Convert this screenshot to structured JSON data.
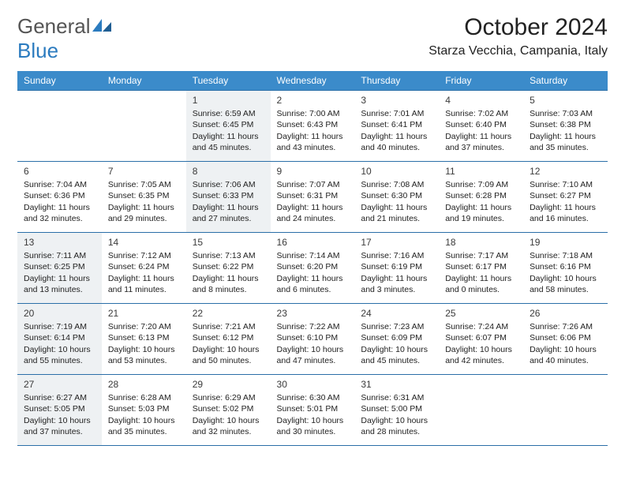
{
  "logo": {
    "text_general": "General",
    "text_blue": "Blue"
  },
  "title": "October 2024",
  "location": "Starza Vecchia, Campania, Italy",
  "colors": {
    "header_bg": "#3b8bca",
    "header_text": "#ffffff",
    "border": "#2b6fa8",
    "shaded_bg": "#eef1f3",
    "logo_blue": "#2b7bbf"
  },
  "day_headers": [
    "Sunday",
    "Monday",
    "Tuesday",
    "Wednesday",
    "Thursday",
    "Friday",
    "Saturday"
  ],
  "weeks": [
    [
      {
        "blank": true,
        "shaded": false
      },
      {
        "blank": true,
        "shaded": false
      },
      {
        "day": "1",
        "shaded": true,
        "sunrise": "6:59 AM",
        "sunset": "6:45 PM",
        "daylight": "11 hours and 45 minutes."
      },
      {
        "day": "2",
        "shaded": false,
        "sunrise": "7:00 AM",
        "sunset": "6:43 PM",
        "daylight": "11 hours and 43 minutes."
      },
      {
        "day": "3",
        "shaded": false,
        "sunrise": "7:01 AM",
        "sunset": "6:41 PM",
        "daylight": "11 hours and 40 minutes."
      },
      {
        "day": "4",
        "shaded": false,
        "sunrise": "7:02 AM",
        "sunset": "6:40 PM",
        "daylight": "11 hours and 37 minutes."
      },
      {
        "day": "5",
        "shaded": false,
        "sunrise": "7:03 AM",
        "sunset": "6:38 PM",
        "daylight": "11 hours and 35 minutes."
      }
    ],
    [
      {
        "day": "6",
        "shaded": false,
        "sunrise": "7:04 AM",
        "sunset": "6:36 PM",
        "daylight": "11 hours and 32 minutes."
      },
      {
        "day": "7",
        "shaded": false,
        "sunrise": "7:05 AM",
        "sunset": "6:35 PM",
        "daylight": "11 hours and 29 minutes."
      },
      {
        "day": "8",
        "shaded": true,
        "sunrise": "7:06 AM",
        "sunset": "6:33 PM",
        "daylight": "11 hours and 27 minutes."
      },
      {
        "day": "9",
        "shaded": false,
        "sunrise": "7:07 AM",
        "sunset": "6:31 PM",
        "daylight": "11 hours and 24 minutes."
      },
      {
        "day": "10",
        "shaded": false,
        "sunrise": "7:08 AM",
        "sunset": "6:30 PM",
        "daylight": "11 hours and 21 minutes."
      },
      {
        "day": "11",
        "shaded": false,
        "sunrise": "7:09 AM",
        "sunset": "6:28 PM",
        "daylight": "11 hours and 19 minutes."
      },
      {
        "day": "12",
        "shaded": false,
        "sunrise": "7:10 AM",
        "sunset": "6:27 PM",
        "daylight": "11 hours and 16 minutes."
      }
    ],
    [
      {
        "day": "13",
        "shaded": true,
        "sunrise": "7:11 AM",
        "sunset": "6:25 PM",
        "daylight": "11 hours and 13 minutes."
      },
      {
        "day": "14",
        "shaded": false,
        "sunrise": "7:12 AM",
        "sunset": "6:24 PM",
        "daylight": "11 hours and 11 minutes."
      },
      {
        "day": "15",
        "shaded": false,
        "sunrise": "7:13 AM",
        "sunset": "6:22 PM",
        "daylight": "11 hours and 8 minutes."
      },
      {
        "day": "16",
        "shaded": false,
        "sunrise": "7:14 AM",
        "sunset": "6:20 PM",
        "daylight": "11 hours and 6 minutes."
      },
      {
        "day": "17",
        "shaded": false,
        "sunrise": "7:16 AM",
        "sunset": "6:19 PM",
        "daylight": "11 hours and 3 minutes."
      },
      {
        "day": "18",
        "shaded": false,
        "sunrise": "7:17 AM",
        "sunset": "6:17 PM",
        "daylight": "11 hours and 0 minutes."
      },
      {
        "day": "19",
        "shaded": false,
        "sunrise": "7:18 AM",
        "sunset": "6:16 PM",
        "daylight": "10 hours and 58 minutes."
      }
    ],
    [
      {
        "day": "20",
        "shaded": true,
        "sunrise": "7:19 AM",
        "sunset": "6:14 PM",
        "daylight": "10 hours and 55 minutes."
      },
      {
        "day": "21",
        "shaded": false,
        "sunrise": "7:20 AM",
        "sunset": "6:13 PM",
        "daylight": "10 hours and 53 minutes."
      },
      {
        "day": "22",
        "shaded": false,
        "sunrise": "7:21 AM",
        "sunset": "6:12 PM",
        "daylight": "10 hours and 50 minutes."
      },
      {
        "day": "23",
        "shaded": false,
        "sunrise": "7:22 AM",
        "sunset": "6:10 PM",
        "daylight": "10 hours and 47 minutes."
      },
      {
        "day": "24",
        "shaded": false,
        "sunrise": "7:23 AM",
        "sunset": "6:09 PM",
        "daylight": "10 hours and 45 minutes."
      },
      {
        "day": "25",
        "shaded": false,
        "sunrise": "7:24 AM",
        "sunset": "6:07 PM",
        "daylight": "10 hours and 42 minutes."
      },
      {
        "day": "26",
        "shaded": false,
        "sunrise": "7:26 AM",
        "sunset": "6:06 PM",
        "daylight": "10 hours and 40 minutes."
      }
    ],
    [
      {
        "day": "27",
        "shaded": true,
        "sunrise": "6:27 AM",
        "sunset": "5:05 PM",
        "daylight": "10 hours and 37 minutes."
      },
      {
        "day": "28",
        "shaded": false,
        "sunrise": "6:28 AM",
        "sunset": "5:03 PM",
        "daylight": "10 hours and 35 minutes."
      },
      {
        "day": "29",
        "shaded": false,
        "sunrise": "6:29 AM",
        "sunset": "5:02 PM",
        "daylight": "10 hours and 32 minutes."
      },
      {
        "day": "30",
        "shaded": false,
        "sunrise": "6:30 AM",
        "sunset": "5:01 PM",
        "daylight": "10 hours and 30 minutes."
      },
      {
        "day": "31",
        "shaded": false,
        "sunrise": "6:31 AM",
        "sunset": "5:00 PM",
        "daylight": "10 hours and 28 minutes."
      },
      {
        "blank": true,
        "shaded": false
      },
      {
        "blank": true,
        "shaded": false
      }
    ]
  ],
  "labels": {
    "sunrise_prefix": "Sunrise: ",
    "sunset_prefix": "Sunset: ",
    "daylight_prefix": "Daylight: "
  }
}
